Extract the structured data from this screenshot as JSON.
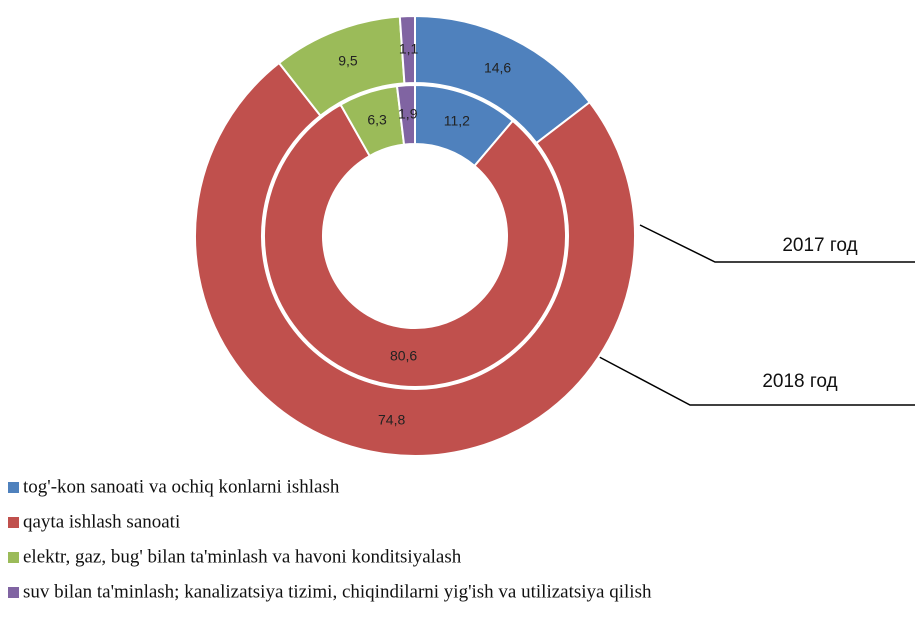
{
  "chart_data": {
    "type": "donut",
    "categories": [
      "tog'-kon sanoati va ochiq konlarni ishlash",
      "qayta ishlash sanoati",
      "elektr, gaz, bug' bilan ta'minlash va havoni konditsiyalash",
      "suv bilan ta'minlash; kanalizatsiya tizimi, chiqindilarni yig'ish va utilizatsiya qilish"
    ],
    "colors": [
      "#4f81bd",
      "#c0504d",
      "#9bbb59",
      "#8064a2"
    ],
    "series": [
      {
        "name": "2017 год",
        "values": [
          14.6,
          74.8,
          9.5,
          1.1
        ],
        "value_labels": [
          "14,6",
          "74,8",
          "9,5",
          "1,1"
        ]
      },
      {
        "name": "2018 год",
        "values": [
          11.2,
          80.6,
          6.3,
          1.9
        ],
        "value_labels": [
          "11,2",
          "80,6",
          "6,3",
          "1,9"
        ]
      }
    ],
    "legend": "bottom"
  }
}
